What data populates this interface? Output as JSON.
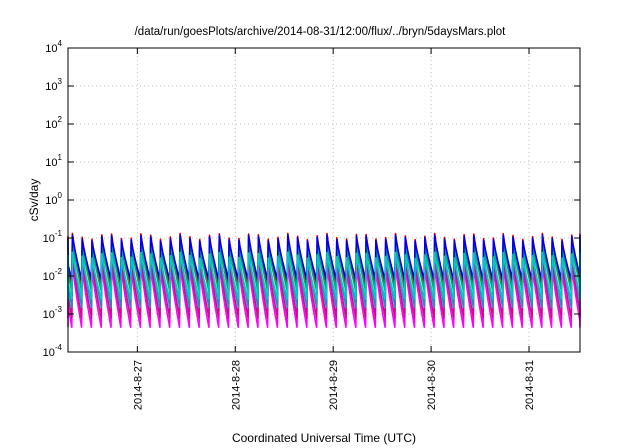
{
  "chart_data": {
    "type": "line",
    "title": "/data/run/goesPlots/archive/2014-08-31/12:00/flux/../bryn/5daysMars.plot",
    "xlabel": "Coordinated Universal Time (UTC)",
    "ylabel": "cSv/day",
    "x_range": [
      "2014-08-26 07:00",
      "2014-08-31 12:30"
    ],
    "y_scale": "log",
    "ylim": [
      0.0001,
      10000
    ],
    "y_ticks": [
      {
        "base": "10",
        "exp": "-4"
      },
      {
        "base": "10",
        "exp": "-3"
      },
      {
        "base": "10",
        "exp": "-2"
      },
      {
        "base": "10",
        "exp": "-1"
      },
      {
        "base": "10",
        "exp": "0"
      },
      {
        "base": "10",
        "exp": "1"
      },
      {
        "base": "10",
        "exp": "2"
      },
      {
        "base": "10",
        "exp": "3"
      },
      {
        "base": "10",
        "exp": "4"
      }
    ],
    "x_ticks": [
      {
        "date": "2014-08-27 00:00",
        "label": "2014-8-27"
      },
      {
        "date": "2014-08-28 00:00",
        "label": "2014-8-28"
      },
      {
        "date": "2014-08-29 00:00",
        "label": "2014-8-29"
      },
      {
        "date": "2014-08-30 00:00",
        "label": "2014-8-30"
      },
      {
        "date": "2014-08-31 00:00",
        "label": "2014-8-31"
      }
    ],
    "grid": true,
    "legend": "none",
    "period_hours": 2.4,
    "series": [
      {
        "color": "#ff00ff",
        "peak": 0.018,
        "trough": 0.00045
      },
      {
        "color": "#c8108a",
        "peak": 0.03,
        "trough": 0.0008
      },
      {
        "color": "#dd0000",
        "peak": 0.11,
        "trough": 0.006
      },
      {
        "color": "#1e90c0",
        "peak": 0.05,
        "trough": 0.0015
      },
      {
        "color": "#00a86b",
        "peak": 0.08,
        "trough": 0.004
      },
      {
        "color": "#0000ee",
        "peak": 0.1,
        "trough": 0.008
      },
      {
        "color": "#00c8c8",
        "peak": 0.035,
        "trough": 0.0025
      }
    ]
  }
}
